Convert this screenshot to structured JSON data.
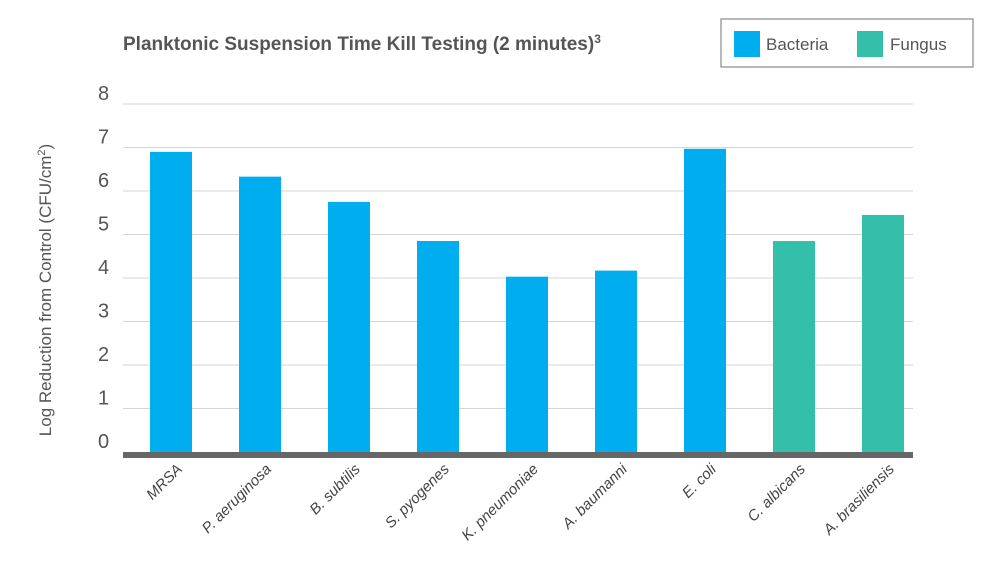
{
  "chart_data": {
    "type": "bar",
    "title": "Planktonic Suspension Time Kill Testing (2 minutes)",
    "title_superscript": "3",
    "ylabel": "Log Reduction from Control (CFU/cm",
    "ylabel_superscript": "2",
    "ylabel_suffix": ")",
    "xlabel": "",
    "ylim": [
      0,
      8
    ],
    "yticks": [
      "0",
      "1",
      "2",
      "3",
      "4",
      "5",
      "6",
      "7",
      "8"
    ],
    "grid": true,
    "legend_position": "top-right",
    "categories": [
      "MRSA",
      "P. aeruginosa",
      "B. subtilis",
      "S. pyogenes",
      "K. pneumoniae",
      "A. baumanni",
      "E. coli",
      "C. albicans",
      "A. brasiliensis"
    ],
    "values": [
      6.9,
      6.33,
      5.75,
      4.85,
      4.03,
      4.17,
      6.97,
      4.85,
      5.45
    ],
    "groups": [
      "Bacteria",
      "Bacteria",
      "Bacteria",
      "Bacteria",
      "Bacteria",
      "Bacteria",
      "Bacteria",
      "Fungus",
      "Fungus"
    ],
    "legend": [
      {
        "name": "Bacteria",
        "color": "#00aeef"
      },
      {
        "name": "Fungus",
        "color": "#34bfaa"
      }
    ],
    "colors": {
      "Bacteria": "#00aeef",
      "Fungus": "#34bfaa",
      "grid": "#d6d6d6",
      "baseline": "#666666"
    }
  }
}
